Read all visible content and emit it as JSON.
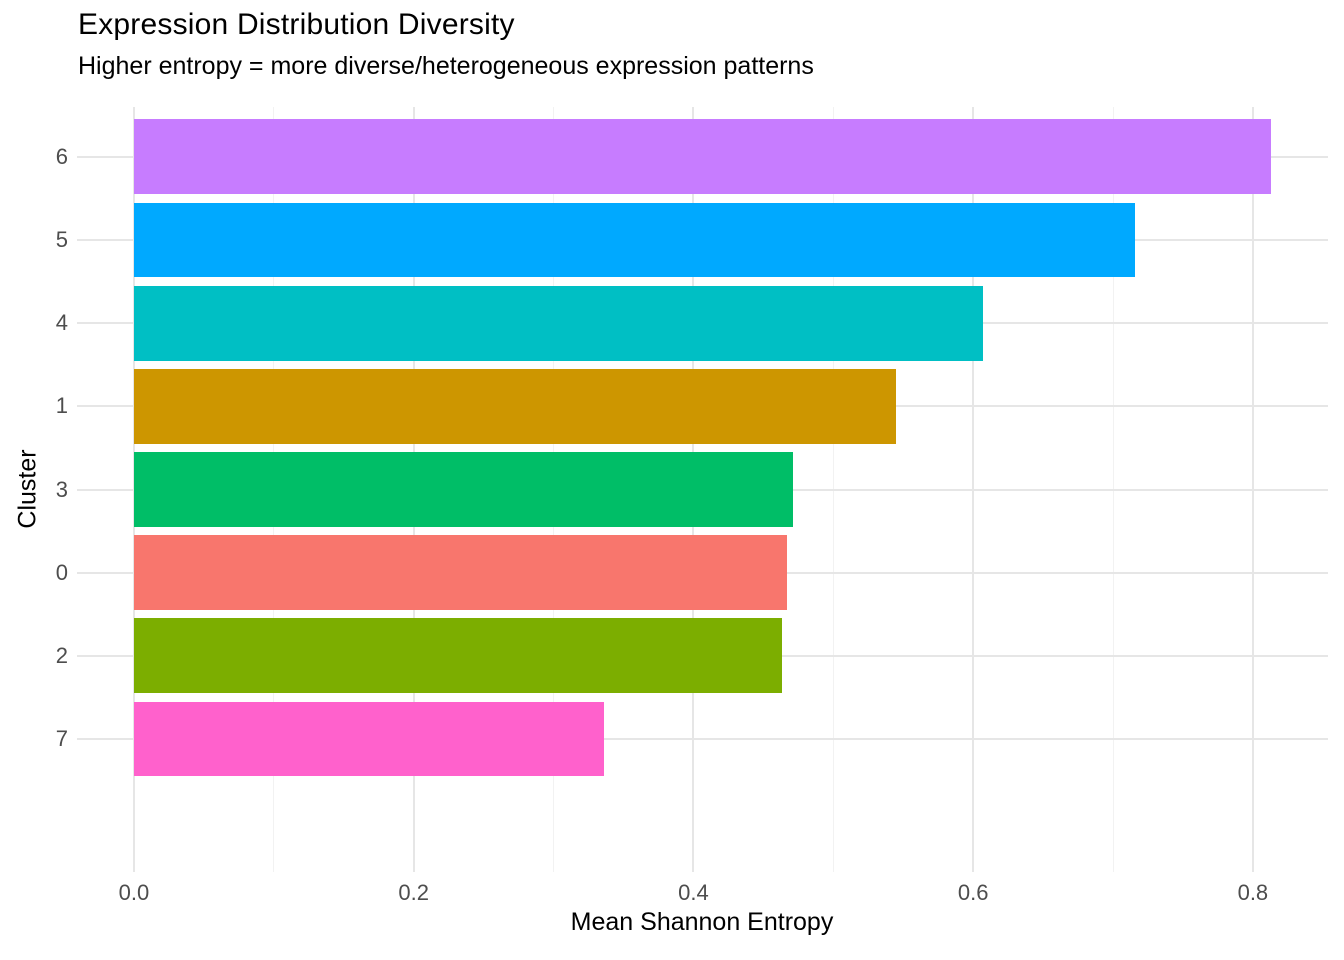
{
  "header": {
    "title": "Expression Distribution Diversity",
    "subtitle": "Higher entropy = more diverse/heterogeneous expression patterns"
  },
  "chart_data": {
    "type": "bar",
    "orientation": "horizontal",
    "title": "Expression Distribution Diversity",
    "subtitle": "Higher entropy = more diverse/heterogeneous expression patterns",
    "xlabel": "Mean Shannon Entropy",
    "ylabel": "Cluster",
    "categories": [
      "6",
      "5",
      "4",
      "1",
      "3",
      "0",
      "2",
      "7"
    ],
    "values": [
      0.813,
      0.716,
      0.607,
      0.545,
      0.471,
      0.467,
      0.463,
      0.336
    ],
    "bar_colors": [
      "#C77CFF",
      "#00A9FF",
      "#00BFC4",
      "#CD9600",
      "#00BE67",
      "#F8766D",
      "#7CAE00",
      "#FF61CC"
    ],
    "x_ticks": [
      0.0,
      0.2,
      0.4,
      0.6,
      0.8
    ],
    "x_tick_labels": [
      "0.0",
      "0.2",
      "0.4",
      "0.6",
      "0.8"
    ],
    "x_minor_ticks": [
      0.1,
      0.3,
      0.5,
      0.7
    ],
    "xlim": [
      -0.0407,
      0.8537
    ],
    "grid": true,
    "legend": false,
    "bar_width_fraction": 0.9,
    "category_expansion": 0.6
  },
  "colors": {
    "background": "#FFFFFF",
    "panel_background": "#FFFFFF",
    "major_grid": "#E6E6E6",
    "minor_grid": "#F2F2F2",
    "tick_label": "#4D4D4D",
    "axis_title": "#000000",
    "title_text": "#000000"
  }
}
